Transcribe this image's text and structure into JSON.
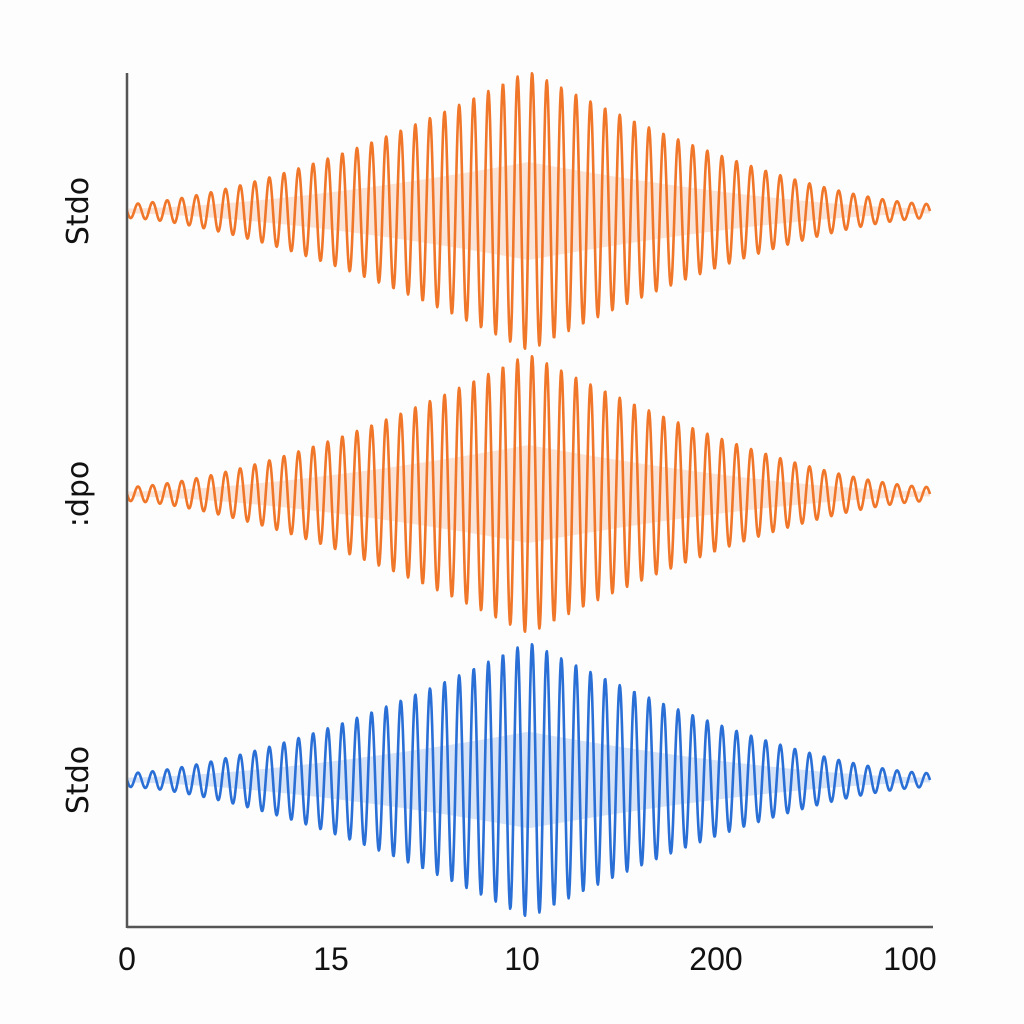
{
  "chart_data": {
    "type": "line",
    "title": "",
    "xlabel": "",
    "ylabel": "",
    "grid": false,
    "legend": "none",
    "x_tick_labels": [
      "0",
      "15",
      "10",
      "200",
      "100"
    ],
    "series": [
      {
        "name": "Stdo",
        "color": "#f0762a",
        "shape": "symmetric oscillating wave packet",
        "envelope_peak_fraction": 0.5,
        "peak_amplitude_relative": 1.0,
        "edge_amplitude_relative": 0.05,
        "oscillation_cycles": 55
      },
      {
        "name": ":dpo",
        "color": "#f0762a",
        "shape": "symmetric oscillating wave packet",
        "envelope_peak_fraction": 0.5,
        "peak_amplitude_relative": 1.0,
        "edge_amplitude_relative": 0.05,
        "oscillation_cycles": 55
      },
      {
        "name": "Stdo",
        "color": "#2a6fd6",
        "shape": "symmetric oscillating wave packet",
        "envelope_peak_fraction": 0.5,
        "peak_amplitude_relative": 1.0,
        "edge_amplitude_relative": 0.05,
        "oscillation_cycles": 55
      }
    ]
  }
}
